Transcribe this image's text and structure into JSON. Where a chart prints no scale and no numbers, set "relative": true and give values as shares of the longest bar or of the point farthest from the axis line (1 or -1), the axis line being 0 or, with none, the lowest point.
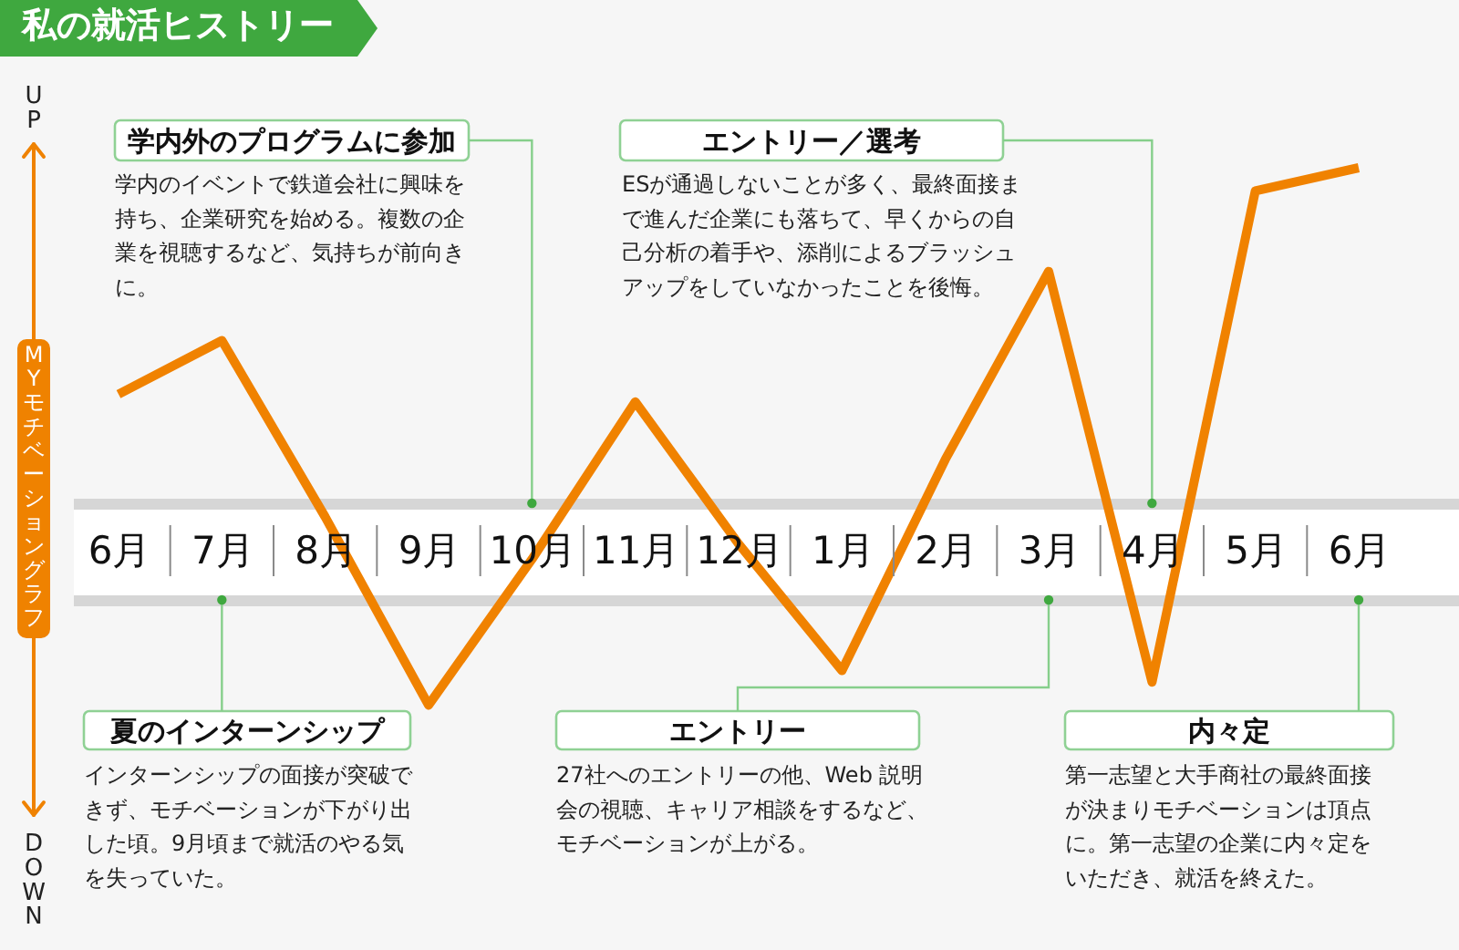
{
  "chart_data": {
    "type": "line",
    "title": "私の就活ヒストリー",
    "ylabel": "MYモチベーショングラフ",
    "categories": [
      "6月",
      "7月",
      "8月",
      "9月",
      "10月",
      "11月",
      "12月",
      "1月",
      "2月",
      "3月",
      "4月",
      "5月",
      "6月"
    ],
    "values": [
      0.41,
      0.55,
      0.09,
      -0.4,
      -0.02,
      0.39,
      0.02,
      -0.31,
      0.24,
      0.73,
      -0.34,
      0.94,
      1.0
    ],
    "color": "#f08200",
    "relative": true,
    "annotations": [
      "UP",
      "DOWN",
      "学内外のプログラムに参加",
      "学内のイベントで鉄道会社に興味を持ち、企業研究を始める。複数の企業を視聴するなど、気持ちが前向きに。",
      "エントリー／選考",
      "ESが通過しないことが多く、最終面接まで進んだ企業にも落ちて、早くからの自己分析の着手や、添削によるブラッシュアップをしていなかったことを後悔。",
      "夏のインターンシップ",
      "インターンシップの面接が突破できず、モチベーションが下がり出した頃。9月頃まで就活のやる気を失っていた。",
      "エントリー",
      "27社へのエントリーの他、Web 説明会の視聴、キャリア相談をするなど、モチベーションが上がる。",
      "内々定",
      "第一志望と大手商社の最終面接が決まりモチベーションは頂点に。第一志望の企業に内々定をいただき、就活を終えた。"
    ]
  }
}
